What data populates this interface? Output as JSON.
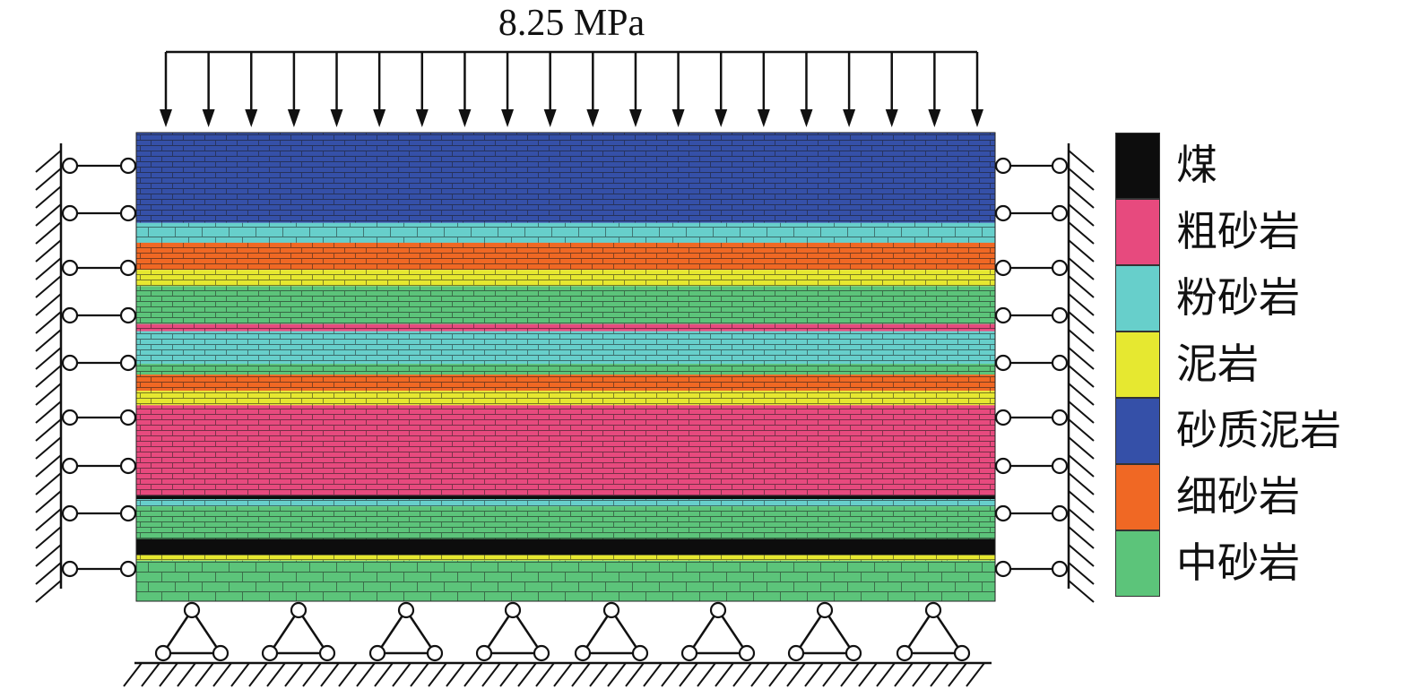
{
  "load": {
    "label": "8.25 MPa",
    "arrow_count": 20
  },
  "legend": {
    "items": [
      {
        "name": "煤",
        "color": "#0d0d0d"
      },
      {
        "name": "粗砂岩",
        "color": "#e74a7e"
      },
      {
        "name": "粉砂岩",
        "color": "#67cfcb"
      },
      {
        "name": "泥岩",
        "color": "#e6e830"
      },
      {
        "name": "砂质泥岩",
        "color": "#3550a8"
      },
      {
        "name": "细砂岩",
        "color": "#f06824"
      },
      {
        "name": "中砂岩",
        "color": "#5cc47a"
      }
    ]
  },
  "strata": [
    {
      "rock": "砂质泥岩",
      "thickness": 100,
      "brick": "fine"
    },
    {
      "rock": "粉砂岩",
      "thickness": 22,
      "brick": "coarse"
    },
    {
      "rock": "细砂岩",
      "thickness": 30,
      "brick": "fine"
    },
    {
      "rock": "泥岩",
      "thickness": 18,
      "brick": "fine"
    },
    {
      "rock": "中砂岩",
      "thickness": 42,
      "brick": "fine"
    },
    {
      "rock": "粗砂岩",
      "thickness": 8,
      "brick": "fine"
    },
    {
      "rock": "粉砂岩",
      "thickness": 36,
      "brick": "fine"
    },
    {
      "rock": "中砂岩",
      "thickness": 12,
      "brick": "fine"
    },
    {
      "rock": "细砂岩",
      "thickness": 18,
      "brick": "fine"
    },
    {
      "rock": "泥岩",
      "thickness": 16,
      "brick": "fine"
    },
    {
      "rock": "粗砂岩",
      "thickness": 100,
      "brick": "fine"
    },
    {
      "rock": "煤",
      "thickness": 4,
      "brick": "none"
    },
    {
      "rock": "粉砂岩",
      "thickness": 8,
      "brick": "fine"
    },
    {
      "rock": "中砂岩",
      "thickness": 36,
      "brick": "fine"
    },
    {
      "rock": "煤",
      "thickness": 18,
      "brick": "none"
    },
    {
      "rock": "泥岩",
      "thickness": 6,
      "brick": "fine"
    },
    {
      "rock": "中砂岩",
      "thickness": 45,
      "brick": "coarse"
    }
  ],
  "supports": {
    "side_roller_count": 9,
    "bottom_pin_count": 8
  }
}
